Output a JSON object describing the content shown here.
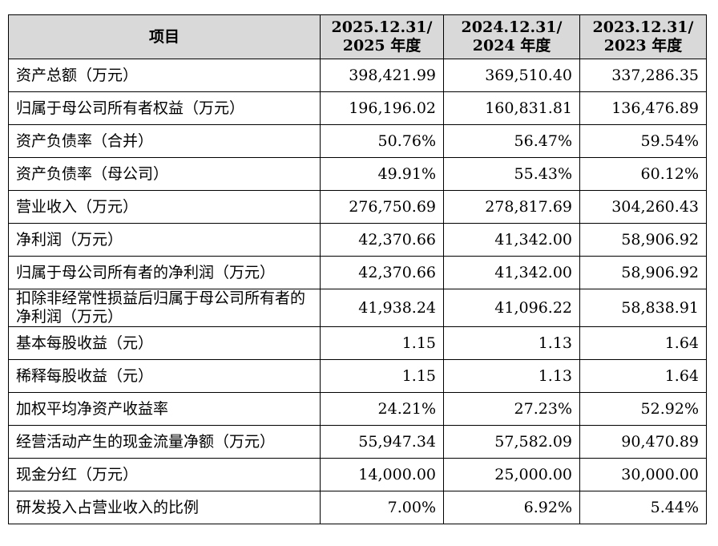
{
  "header": {
    "item": "项目",
    "years": [
      {
        "line1": "2025.12.31/",
        "line2": "2025 年度"
      },
      {
        "line1": "2024.12.31/",
        "line2": "2024 年度"
      },
      {
        "line1": "2023.12.31/",
        "line2": "2023 年度"
      }
    ]
  },
  "rows": [
    {
      "label": "资产总额（万元）",
      "values": [
        "398,421.99",
        "369,510.40",
        "337,286.35"
      ]
    },
    {
      "label": "归属于母公司所有者权益（万元）",
      "values": [
        "196,196.02",
        "160,831.81",
        "136,476.89"
      ]
    },
    {
      "label": "资产负债率（合并）",
      "values": [
        "50.76%",
        "56.47%",
        "59.54%"
      ]
    },
    {
      "label": "资产负债率（母公司）",
      "values": [
        "49.91%",
        "55.43%",
        "60.12%"
      ]
    },
    {
      "label": "营业收入（万元）",
      "values": [
        "276,750.69",
        "278,817.69",
        "304,260.43"
      ]
    },
    {
      "label": "净利润（万元）",
      "values": [
        "42,370.66",
        "41,342.00",
        "58,906.92"
      ]
    },
    {
      "label": "归属于母公司所有者的净利润（万元）",
      "values": [
        "42,370.66",
        "41,342.00",
        "58,906.92"
      ]
    },
    {
      "label": "扣除非经常性损益后归属于母公司所有者的净利润（万元）",
      "values": [
        "41,938.24",
        "41,096.22",
        "58,838.91"
      ]
    },
    {
      "label": "基本每股收益（元）",
      "values": [
        "1.15",
        "1.13",
        "1.64"
      ]
    },
    {
      "label": "稀释每股收益（元）",
      "values": [
        "1.15",
        "1.13",
        "1.64"
      ]
    },
    {
      "label": "加权平均净资产收益率",
      "values": [
        "24.21%",
        "27.23%",
        "52.92%"
      ]
    },
    {
      "label": "经营活动产生的现金流量净额（万元）",
      "values": [
        "55,947.34",
        "57,582.09",
        "90,470.89"
      ]
    },
    {
      "label": "现金分红（万元）",
      "values": [
        "14,000.00",
        "25,000.00",
        "30,000.00"
      ]
    },
    {
      "label": "研发投入占营业收入的比例",
      "values": [
        "7.00%",
        "6.92%",
        "5.44%"
      ]
    }
  ]
}
